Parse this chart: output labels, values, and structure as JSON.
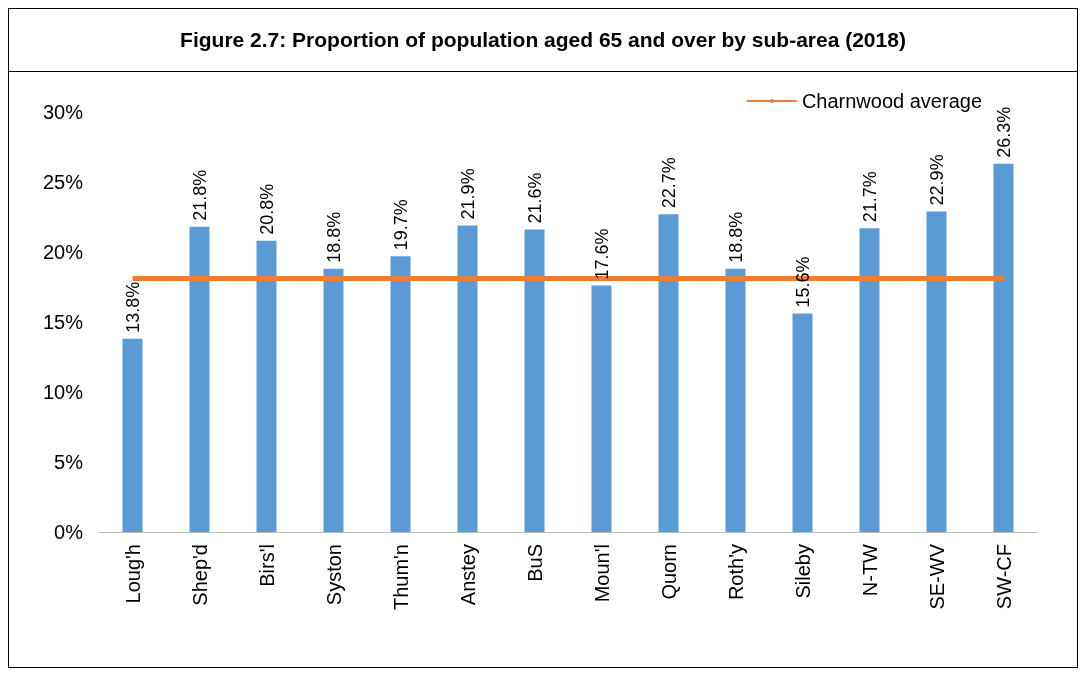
{
  "chart_data": {
    "type": "bar",
    "title": "Figure 2.7: Proportion of population aged 65 and over by sub-area (2018)",
    "categories": [
      "Loug'h",
      "Shep'd",
      "Birs'l",
      "Syston",
      "Thum'n",
      "Anstey",
      "BuS",
      "Moun'l",
      "Quorn",
      "Roth'y",
      "Sileby",
      "N-TW",
      "SE-WV",
      "SW-CF"
    ],
    "series": [
      {
        "color": "#5b9bd5",
        "values": [
          13.8,
          21.8,
          20.8,
          18.8,
          19.7,
          21.9,
          21.6,
          17.6,
          22.7,
          18.8,
          15.6,
          21.7,
          22.9,
          26.3
        ],
        "value_labels": [
          "13.8%",
          "21.8%",
          "20.8%",
          "18.8%",
          "19.7%",
          "21.9%",
          "21.6%",
          "17.6%",
          "22.7%",
          "18.8%",
          "15.6%",
          "21.7%",
          "22.9%",
          "26.3%"
        ]
      },
      {
        "type": "line",
        "name": "Charnwood average",
        "color": "#ed7d31",
        "values": [
          18.1,
          18.1,
          18.1,
          18.1,
          18.1,
          18.1,
          18.1,
          18.1,
          18.1,
          18.1,
          18.1,
          18.1,
          18.1,
          18.1
        ]
      }
    ],
    "ylim": [
      0,
      30
    ],
    "yticks": [
      {
        "value": 0,
        "label": "0%"
      },
      {
        "value": 5,
        "label": "5%"
      },
      {
        "value": 10,
        "label": "10%"
      },
      {
        "value": 15,
        "label": "15%"
      },
      {
        "value": 20,
        "label": "20%"
      },
      {
        "value": 25,
        "label": "25%"
      },
      {
        "value": 30,
        "label": "30%"
      }
    ],
    "grid": false,
    "legend": "top right",
    "marker": "none"
  }
}
